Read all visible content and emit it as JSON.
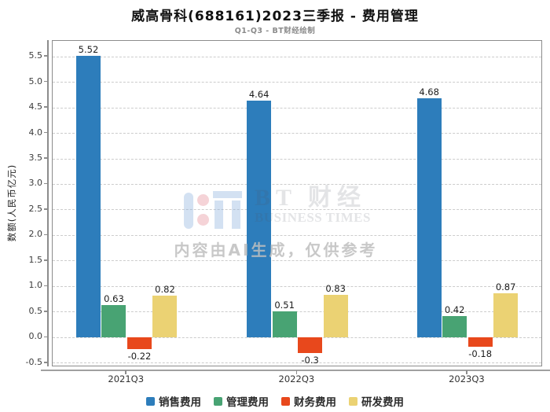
{
  "title": "威高骨科(688161)2023三季报 - 费用管理",
  "subtitle": "Q1-Q3 - BT财经绘制",
  "watermark": {
    "brand_cn": "BT 财经",
    "brand_en": "BUSINESS TIMES",
    "notice": "内容由AI生成，仅供参考",
    "logo_icon": "bt-businesstimes-logo"
  },
  "chart_data": {
    "type": "bar",
    "title": "威高骨科(688161)2023三季报 - 费用管理",
    "subtitle": "Q1-Q3 - BT财经绘制",
    "categories": [
      "2021Q3",
      "2022Q3",
      "2023Q3"
    ],
    "series": [
      {
        "name": "销售费用",
        "key": "sales-expense",
        "color": "#2d7dbb",
        "values": [
          5.52,
          4.64,
          4.68
        ]
      },
      {
        "name": "管理费用",
        "key": "admin-expense",
        "color": "#48a373",
        "values": [
          0.63,
          0.51,
          0.42
        ]
      },
      {
        "name": "财务费用",
        "key": "finance-expense",
        "color": "#e8481c",
        "values": [
          -0.22,
          -0.3,
          -0.18
        ]
      },
      {
        "name": "研发费用",
        "key": "rd-expense",
        "color": "#ebd273",
        "values": [
          0.82,
          0.83,
          0.87
        ]
      }
    ],
    "xlabel": "",
    "ylabel": "数额(人民币亿元)",
    "ylim": [
      -0.58,
      5.81
    ],
    "yticks": [
      -0.5,
      0.0,
      0.5,
      1.0,
      1.5,
      2.0,
      2.5,
      3.0,
      3.5,
      4.0,
      4.5,
      5.0,
      5.5
    ],
    "grid": true,
    "grid_style": "dashed",
    "legend_position": "bottom",
    "background": "#ffffff"
  }
}
